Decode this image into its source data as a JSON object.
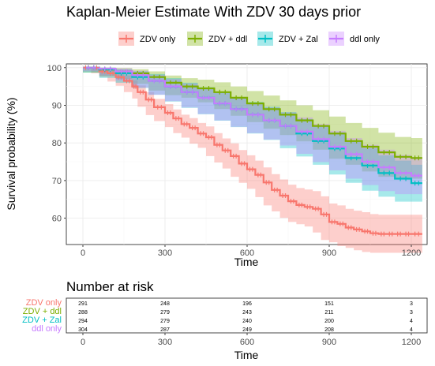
{
  "chart_data": {
    "type": "line",
    "title": "Kaplan-Meier Estimate With ZDV 30 days prior",
    "xlabel": "Time",
    "ylabel": "Survival probability (%)",
    "xlim": [
      0,
      1240
    ],
    "ylim": [
      53,
      101
    ],
    "x_ticks": [
      0,
      300,
      600,
      900,
      1200
    ],
    "y_ticks": [
      60,
      70,
      80,
      90,
      100
    ],
    "grid": true,
    "legend_position": "top",
    "series": [
      {
        "name": "ZDV only",
        "color": "#F8766D",
        "x": [
          0,
          30,
          60,
          90,
          120,
          150,
          180,
          200,
          230,
          260,
          300,
          330,
          360,
          390,
          420,
          450,
          480,
          510,
          540,
          570,
          600,
          630,
          660,
          690,
          720,
          750,
          780,
          810,
          840,
          870,
          900,
          930,
          960,
          990,
          1020,
          1050,
          1080,
          1110,
          1140,
          1170,
          1200,
          1240
        ],
        "y": [
          100,
          100,
          99,
          98.5,
          97.5,
          96.5,
          95,
          93.5,
          91.5,
          89.5,
          88,
          86.5,
          85,
          84,
          82.5,
          81.5,
          79.5,
          78,
          76.5,
          74.5,
          73,
          71.5,
          69.5,
          67.5,
          66,
          64.5,
          63.5,
          63,
          62.5,
          61,
          59,
          58.5,
          57.5,
          57,
          56.5,
          56,
          55.8,
          55.8,
          55.8,
          55.8,
          55.8,
          55.8
        ],
        "lower": [
          100,
          100,
          98.5,
          97.5,
          96.3,
          95.2,
          93.5,
          91.8,
          89.6,
          87.4,
          85.8,
          84.2,
          82.6,
          81.4,
          79.8,
          78.7,
          76.5,
          74.8,
          73.2,
          71,
          69.4,
          67.8,
          65.6,
          63.4,
          61.8,
          60.1,
          59,
          58.4,
          57.8,
          56.2,
          54.2,
          53.6,
          52.6,
          52.1,
          51.5,
          51,
          50.8,
          50.8,
          50.8,
          50.8,
          50.8,
          50.8
        ],
        "upper": [
          100,
          100,
          99.9,
          99.6,
          98.8,
          97.9,
          96.6,
          95.3,
          93.5,
          91.7,
          90.3,
          88.9,
          87.5,
          86.6,
          85.3,
          84.4,
          82.6,
          81.2,
          79.9,
          78.1,
          76.7,
          75.3,
          73.5,
          71.7,
          70.3,
          68.9,
          68,
          67.6,
          67.2,
          65.8,
          63.9,
          63.4,
          62.5,
          62,
          61.6,
          61.1,
          60.9,
          60.9,
          60.9,
          60.9,
          60.9,
          60.9
        ],
        "risk": [
          291,
          248,
          196,
          151,
          3
        ]
      },
      {
        "name": "ZDV + ddl",
        "color": "#7CAE00",
        "x": [
          0,
          60,
          120,
          180,
          240,
          300,
          360,
          420,
          480,
          540,
          600,
          660,
          720,
          780,
          840,
          900,
          960,
          1020,
          1080,
          1140,
          1200,
          1240
        ],
        "y": [
          100,
          99.5,
          99,
          98.5,
          97.5,
          96,
          95,
          94.5,
          93.5,
          92,
          90.5,
          89,
          87.5,
          86,
          84.5,
          82.5,
          80.5,
          79,
          77.5,
          76.3,
          76,
          76
        ],
        "lower": [
          100,
          98.7,
          97.8,
          97,
          95.7,
          93.9,
          92.7,
          92,
          90.8,
          89,
          87.2,
          85.5,
          83.8,
          82.1,
          80.4,
          78.2,
          75.8,
          74.2,
          72.4,
          71,
          70.5,
          70.5
        ],
        "upper": [
          100,
          100,
          99.9,
          99.6,
          99,
          97.9,
          97.2,
          96.8,
          96.1,
          95,
          93.8,
          92.6,
          91.3,
          90,
          88.7,
          87,
          85.3,
          84,
          82.7,
          81.6,
          81.3,
          81.3
        ],
        "risk": [
          288,
          279,
          243,
          211,
          3
        ]
      },
      {
        "name": "ZDV + Zal",
        "color": "#00BFC4",
        "x": [
          0,
          60,
          120,
          180,
          240,
          300,
          360,
          420,
          480,
          540,
          600,
          660,
          720,
          780,
          840,
          900,
          960,
          1020,
          1080,
          1140,
          1200,
          1240
        ],
        "y": [
          100,
          99.5,
          98.5,
          97.5,
          96.5,
          95,
          93.5,
          92,
          90.5,
          89,
          87.5,
          86,
          84.5,
          82.5,
          80.5,
          78.5,
          76,
          74,
          72,
          70.5,
          69.3,
          69.3
        ],
        "lower": [
          100,
          98.7,
          97.3,
          96,
          94.6,
          92.8,
          91,
          89.3,
          87.6,
          85.9,
          84.2,
          82.5,
          80.8,
          78.6,
          76.4,
          74.2,
          71.6,
          69.4,
          67.3,
          65.7,
          64.4,
          64.4
        ],
        "upper": [
          100,
          100,
          99.6,
          99,
          98.3,
          97.2,
          96,
          94.8,
          93.5,
          92.2,
          90.9,
          89.6,
          88.2,
          86.4,
          84.6,
          82.8,
          80.4,
          78.6,
          76.7,
          75.3,
          74.2,
          74.2
        ],
        "risk": [
          294,
          279,
          240,
          200,
          4
        ]
      },
      {
        "name": "ddl only",
        "color": "#C77CFF",
        "x": [
          0,
          60,
          120,
          180,
          240,
          300,
          360,
          420,
          480,
          540,
          600,
          660,
          720,
          780,
          840,
          900,
          960,
          1020,
          1080,
          1140,
          1200,
          1240
        ],
        "y": [
          100,
          99.7,
          99,
          98,
          96.5,
          95,
          93.5,
          92,
          90.5,
          89,
          87.5,
          86,
          84.5,
          83,
          81,
          79,
          77,
          75,
          73.5,
          72,
          71.3,
          71.3
        ],
        "lower": [
          100,
          99,
          97.9,
          96.6,
          94.7,
          92.8,
          91.1,
          89.4,
          87.7,
          86,
          84.3,
          82.6,
          80.9,
          79.3,
          77.1,
          74.9,
          72.7,
          70.5,
          68.8,
          67.2,
          66.4,
          66.4
        ],
        "upper": [
          100,
          100,
          99.8,
          99.2,
          98.1,
          97,
          95.8,
          94.6,
          93.3,
          92,
          90.7,
          89.4,
          88.1,
          86.8,
          85,
          83.2,
          81.3,
          79.5,
          78.2,
          76.8,
          76.2,
          76.2
        ],
        "risk": [
          304,
          287,
          249,
          208,
          4
        ]
      }
    ]
  },
  "risk_table": {
    "title": "Number at risk",
    "xlabel": "Time",
    "times": [
      0,
      300,
      600,
      900,
      1200
    ]
  }
}
